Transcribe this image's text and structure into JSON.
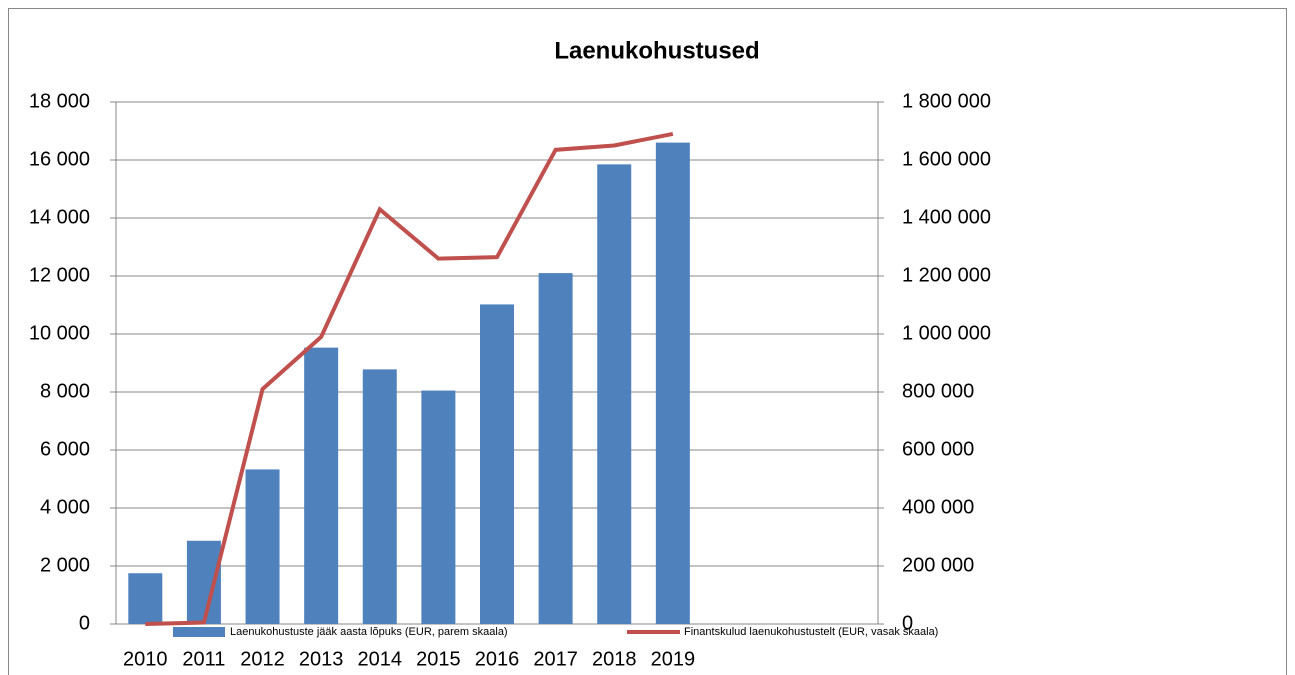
{
  "chart_data": {
    "type": "bar_line",
    "title": "Laenukohustused",
    "categories": [
      "2010",
      "2011",
      "2012",
      "2013",
      "2014",
      "2015",
      "2016",
      "2017",
      "2018",
      "2019"
    ],
    "series": [
      {
        "name": "Laenukohustuste jääk aasta lõpuks (EUR, parem skaala)",
        "type": "bar",
        "axis": "y2",
        "color": "#4f81bd",
        "values": [
          175000,
          287000,
          533000,
          953000,
          878000,
          805000,
          1102000,
          1210000,
          1585000,
          1660000
        ]
      },
      {
        "name": "Finantskulud laenukohustustelt (EUR, vasak skaala)",
        "type": "line",
        "axis": "y",
        "color": "#c0504d",
        "values": [
          0,
          50,
          8100,
          9900,
          14300,
          12600,
          12650,
          16350,
          16500,
          16900
        ]
      }
    ],
    "ylim": [
      0,
      18000
    ],
    "yticks": [
      0,
      {
        "value": 2000,
        "label": "2 000"
      },
      {
        "value": 4000,
        "label": "4 000"
      },
      {
        "value": 6000,
        "label": "6 000"
      },
      {
        "value": 8000,
        "label": "8 000"
      },
      {
        "value": 10000,
        "label": "10 000"
      },
      {
        "value": 12000,
        "label": "12 000"
      },
      {
        "value": 14000,
        "label": "14 000"
      },
      {
        "value": 16000,
        "label": "16 000"
      },
      {
        "value": 18000,
        "label": "18 000"
      }
    ],
    "y2lim": [
      0,
      1800000
    ],
    "y2ticks": [
      0,
      {
        "value": 200000,
        "label": "200 000"
      },
      {
        "value": 400000,
        "label": "400 000"
      },
      {
        "value": 600000,
        "label": "600 000"
      },
      {
        "value": 800000,
        "label": "800 000"
      },
      {
        "value": 1000000,
        "label": "1 000 000"
      },
      {
        "value": 1200000,
        "label": "1 200 000"
      },
      {
        "value": 1400000,
        "label": "1 400 000"
      },
      {
        "value": 1600000,
        "label": "1 600 000"
      },
      {
        "value": 1800000,
        "label": "1 800 000"
      }
    ],
    "grid": true,
    "legend": "bottom"
  }
}
